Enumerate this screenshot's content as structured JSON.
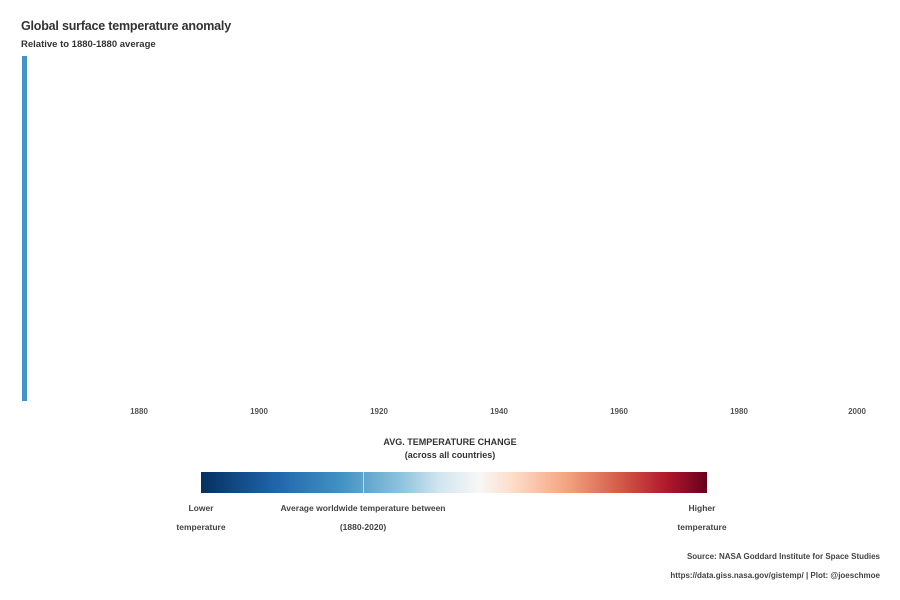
{
  "chart_data": {
    "type": "bar",
    "title": "Global surface temperature anomaly",
    "subtitle": "Relative to 1880-1880 average",
    "x_ticks": [
      "1880",
      "1900",
      "1920",
      "1940",
      "1960",
      "1980",
      "2000"
    ],
    "x_range": [
      1880,
      2000
    ],
    "series": [
      {
        "x": [
          1880
        ],
        "color": "#4393c3"
      }
    ],
    "legend": {
      "title_line1": "AVG. TEMPERATURE CHANGE",
      "title_line2": "(across all countries)",
      "colormap": [
        "#053061",
        "#2166ac",
        "#4393c3",
        "#92c5de",
        "#d1e5f0",
        "#f7f7f7",
        "#fddbc7",
        "#f4a582",
        "#d6604d",
        "#b2182b",
        "#67001f"
      ],
      "left_label_1": "Lower",
      "left_label_2": "temperature",
      "mid_label_1": "Average worldwide temperature between",
      "mid_label_2": "(1880-2020)",
      "right_label_1": "Higher",
      "right_label_2": "temperature"
    },
    "source_line1": "Source: NASA Goddard Institute for Space Studies",
    "source_line2": "https://data.giss.nasa.gov/gistemp/ | Plot: @joeschmoe"
  }
}
